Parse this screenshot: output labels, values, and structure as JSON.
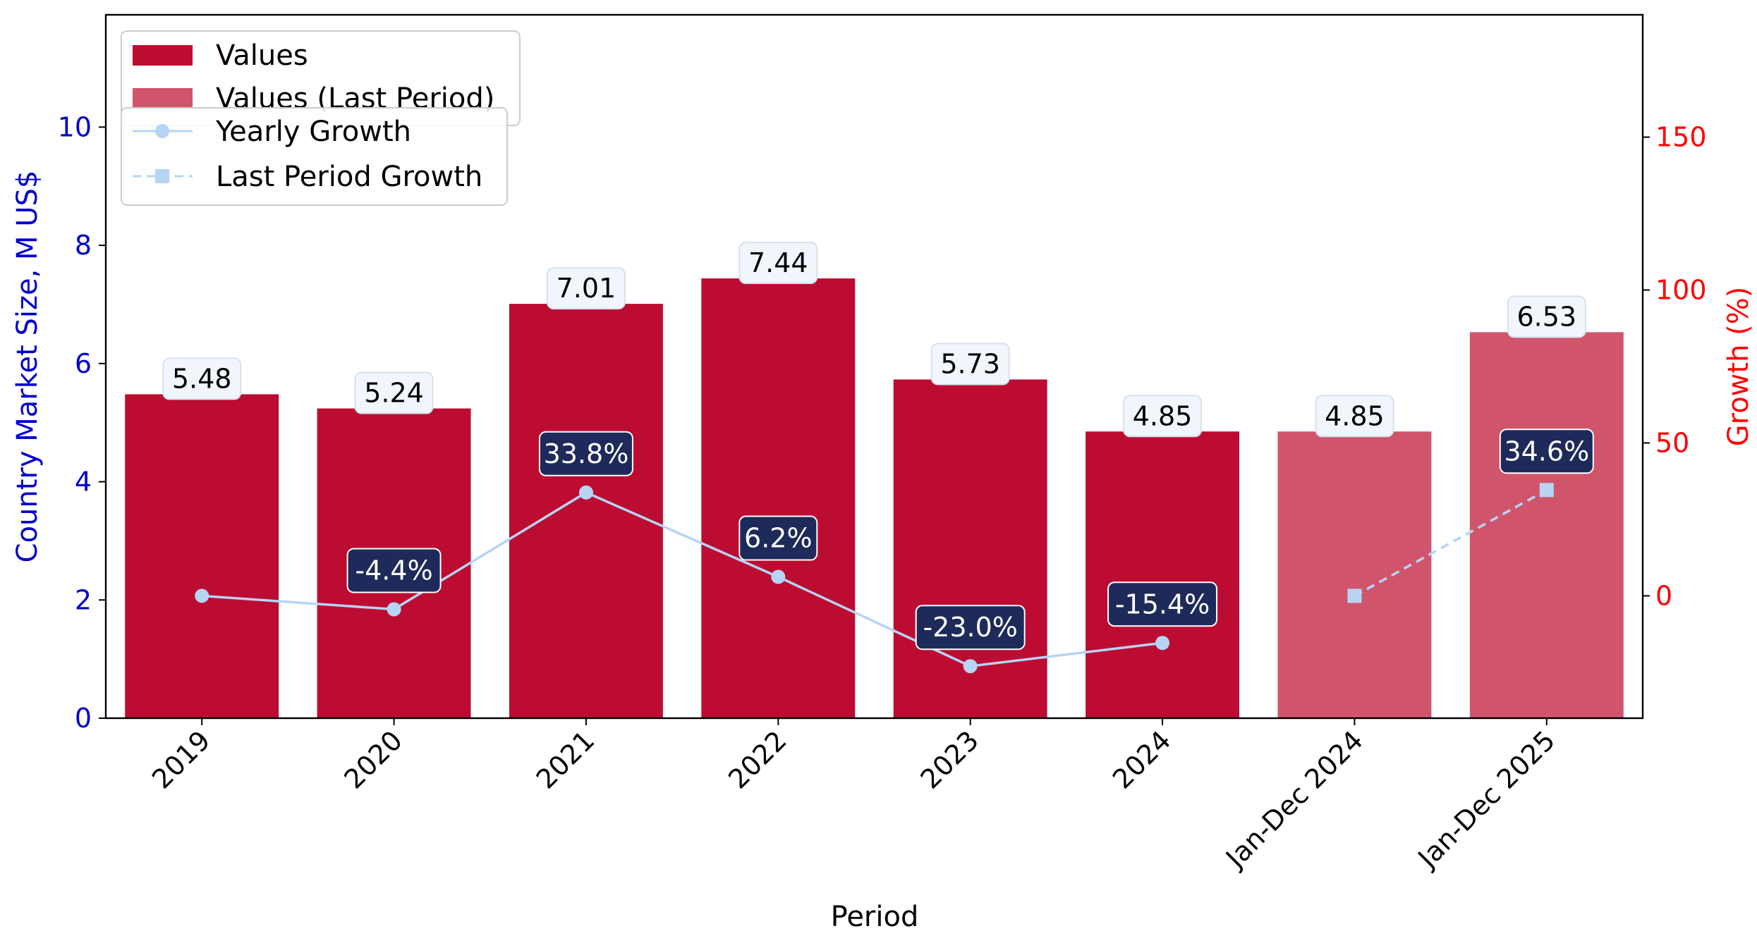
{
  "chart_data": {
    "type": "bar",
    "categories": [
      "2019",
      "2020",
      "2021",
      "2022",
      "2023",
      "2024",
      "Jan-Dec 2024",
      "Jan-Dec 2025"
    ],
    "series": [
      {
        "name": "Values",
        "values": [
          5.48,
          5.24,
          7.01,
          7.44,
          5.73,
          4.85,
          null,
          null
        ],
        "type": "bar",
        "color": "#bc0c32"
      },
      {
        "name": "Values (Last Period)",
        "values": [
          null,
          null,
          null,
          null,
          null,
          null,
          4.85,
          6.53
        ],
        "type": "bar",
        "color": "#d0556c"
      },
      {
        "name": "Yearly Growth",
        "values": [
          0,
          -4.4,
          33.8,
          6.2,
          -23.0,
          -15.4,
          null,
          null
        ],
        "type": "line",
        "axis": "right",
        "color": "#b6d4f4",
        "marker": "circle"
      },
      {
        "name": "Last Period Growth",
        "values": [
          null,
          null,
          null,
          null,
          null,
          null,
          0,
          34.6
        ],
        "type": "line",
        "axis": "right",
        "color": "#b6d4f4",
        "marker": "square",
        "dashed": true
      }
    ],
    "bar_labels": [
      "5.48",
      "5.24",
      "7.01",
      "7.44",
      "5.73",
      "4.85",
      "4.85",
      "6.53"
    ],
    "growth_labels": [
      {
        "index": 1,
        "text": "-4.4%"
      },
      {
        "index": 2,
        "text": "33.8%"
      },
      {
        "index": 3,
        "text": "6.2%"
      },
      {
        "index": 4,
        "text": "-23.0%"
      },
      {
        "index": 5,
        "text": "-15.4%"
      },
      {
        "index": 7,
        "text": "34.6%"
      }
    ],
    "xlabel": "Period",
    "ylabel": "Country Market Size, M US$",
    "ylabel_right": "Growth (%)",
    "ylim": [
      0,
      11.9
    ],
    "ylim_right": [
      -40,
      190
    ],
    "yticks": [
      0,
      2,
      4,
      6,
      8,
      10
    ],
    "yticks_right": [
      0,
      50,
      100,
      150
    ],
    "grid": false,
    "legend_placement": "top-left",
    "colors": {
      "left_axis": "#0000cc",
      "right_axis": "#ff0000",
      "label_box": "#f0f6fc",
      "growth_box": "#1e2a5a"
    }
  }
}
